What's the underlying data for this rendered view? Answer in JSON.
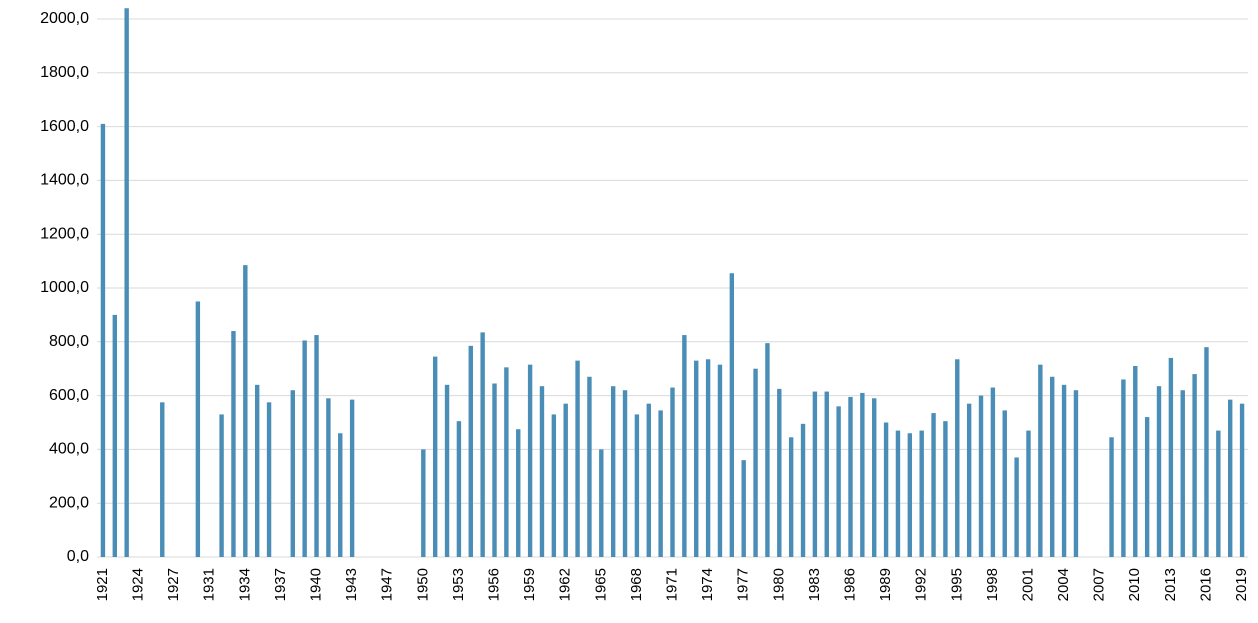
{
  "chart_data": {
    "type": "bar",
    "categories": [
      "1921",
      null,
      null,
      "1924",
      null,
      null,
      "1927",
      null,
      null,
      "1931",
      null,
      null,
      "1934",
      null,
      null,
      "1937",
      null,
      null,
      "1940",
      null,
      null,
      "1943",
      null,
      null,
      "1947",
      null,
      null,
      "1950",
      null,
      null,
      "1953",
      null,
      null,
      "1956",
      null,
      null,
      "1959",
      null,
      null,
      "1962",
      null,
      null,
      "1965",
      null,
      null,
      "1968",
      null,
      null,
      "1971",
      null,
      null,
      "1974",
      null,
      null,
      "1977",
      null,
      null,
      "1980",
      null,
      null,
      "1983",
      null,
      null,
      "1986",
      null,
      null,
      "1989",
      null,
      null,
      "1992",
      null,
      null,
      "1995",
      null,
      null,
      "1998",
      null,
      null,
      "2001",
      null,
      null,
      "2004",
      null,
      null,
      "2007",
      null,
      null,
      "2010",
      null,
      null,
      "2013",
      null,
      null,
      "2016",
      null,
      null,
      "2019"
    ],
    "values": [
      1610,
      900,
      2040,
      null,
      null,
      575,
      null,
      null,
      950,
      null,
      530,
      840,
      1085,
      640,
      575,
      null,
      620,
      805,
      825,
      590,
      460,
      585,
      null,
      null,
      null,
      null,
      null,
      400,
      745,
      640,
      505,
      785,
      835,
      645,
      705,
      475,
      715,
      635,
      530,
      570,
      730,
      670,
      400,
      635,
      620,
      530,
      570,
      545,
      630,
      825,
      730,
      735,
      715,
      1055,
      360,
      700,
      795,
      625,
      445,
      495,
      615,
      615,
      560,
      595,
      610,
      590,
      500,
      470,
      460,
      470,
      535,
      505,
      735,
      570,
      600,
      630,
      545,
      370,
      470,
      715,
      670,
      640,
      620,
      null,
      null,
      445,
      660,
      710,
      520,
      635,
      740,
      620,
      680,
      780,
      470,
      585,
      570
    ],
    "color": "#4a8db6",
    "ylim": [
      0,
      2040
    ],
    "yticks": [
      {
        "value": 0,
        "label": "0,0"
      },
      {
        "value": 200,
        "label": "200,0"
      },
      {
        "value": 400,
        "label": "400,0"
      },
      {
        "value": 600,
        "label": "600,0"
      },
      {
        "value": 800,
        "label": "800,0"
      },
      {
        "value": 1000,
        "label": "1000,0"
      },
      {
        "value": 1200,
        "label": "1200,0"
      },
      {
        "value": 1400,
        "label": "1400,0"
      },
      {
        "value": 1600,
        "label": "1600,0"
      },
      {
        "value": 1800,
        "label": "1800,0"
      },
      {
        "value": 2000,
        "label": "2000,0"
      }
    ],
    "grid": true
  }
}
